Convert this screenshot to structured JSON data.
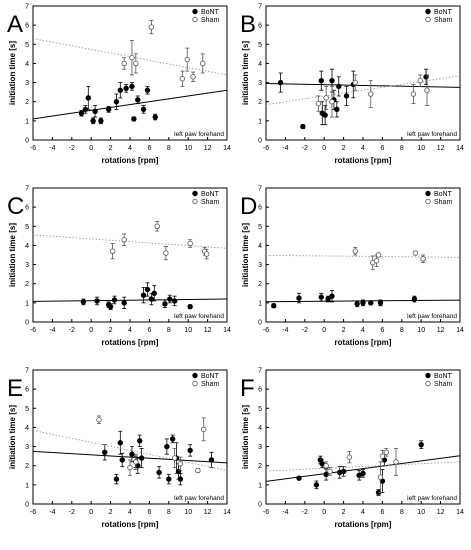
{
  "figure": {
    "common": {
      "xlabel": "rotations [rpm]",
      "ylabel": "initiation time [s]",
      "xlim": [
        -6,
        14
      ],
      "ylim": [
        0,
        7
      ],
      "xticks": [
        "-6",
        "-4",
        "-2",
        "0",
        "2",
        "4",
        "6",
        "8",
        "10",
        "12",
        "14"
      ],
      "yticks": [
        "0",
        "1",
        "2",
        "3",
        "4",
        "5",
        "6",
        "7"
      ],
      "annotation": "left paw forehand"
    },
    "colors": {
      "bont": "#000000",
      "sham": "#ffffff",
      "sham_stroke": "#555555",
      "axis": "#000000",
      "sham_line": "#9a9a9a"
    }
  },
  "chart_data": [
    {
      "type": "scatter",
      "panel_letter": "A",
      "legend": [
        "BoNT",
        "Sham"
      ],
      "legend_position": "top-right",
      "series": [
        {
          "name": "BoNT",
          "marker": "filled-circle",
          "points": [
            [
              -1.0,
              1.4,
              0.15
            ],
            [
              -0.6,
              1.6,
              0.2
            ],
            [
              -0.3,
              2.2,
              0.6
            ],
            [
              0.2,
              1.0,
              0.15
            ],
            [
              0.4,
              1.5,
              0.3
            ],
            [
              1.0,
              1.0,
              0.15
            ],
            [
              1.8,
              1.6,
              0.15
            ],
            [
              2.6,
              2.0,
              0.4
            ],
            [
              3.0,
              2.6,
              0.4
            ],
            [
              3.6,
              2.7,
              0.2
            ],
            [
              4.2,
              2.8,
              0.2
            ],
            [
              4.4,
              1.1,
              0.1
            ],
            [
              4.8,
              2.1,
              0.2
            ],
            [
              5.4,
              1.6,
              0.2
            ],
            [
              5.8,
              2.6,
              0.2
            ],
            [
              6.6,
              1.2,
              0.15
            ]
          ],
          "trend": {
            "style": "solid",
            "y_at_xmin": 1.1,
            "y_at_xmax": 2.6
          }
        },
        {
          "name": "Sham",
          "marker": "open-circle",
          "points": [
            [
              3.4,
              4.0,
              0.3
            ],
            [
              4.2,
              4.3,
              0.9
            ],
            [
              4.6,
              4.0,
              0.5
            ],
            [
              6.2,
              5.9,
              0.35
            ],
            [
              9.4,
              3.2,
              0.4
            ],
            [
              9.9,
              4.2,
              0.6
            ],
            [
              10.5,
              3.3,
              0.25
            ],
            [
              11.5,
              4.0,
              0.5
            ]
          ],
          "trend": {
            "style": "dotted",
            "y_at_xmin": 5.3,
            "y_at_xmax": 3.4
          }
        }
      ]
    },
    {
      "type": "scatter",
      "panel_letter": "B",
      "legend": [
        "BoNT",
        "Sham"
      ],
      "legend_position": "top-right",
      "series": [
        {
          "name": "BoNT",
          "marker": "filled-circle",
          "points": [
            [
              -4.5,
              3.0,
              0.5
            ],
            [
              -2.2,
              0.7,
              0.1
            ],
            [
              -0.3,
              3.1,
              0.5
            ],
            [
              -0.2,
              1.4,
              0.6
            ],
            [
              0.1,
              1.3,
              0.5
            ],
            [
              0.8,
              3.1,
              0.6
            ],
            [
              1.0,
              2.1,
              0.5
            ],
            [
              1.3,
              1.6,
              0.4
            ],
            [
              1.5,
              2.8,
              0.5
            ],
            [
              2.3,
              2.3,
              0.5
            ],
            [
              3.0,
              2.9,
              0.7
            ],
            [
              10.5,
              3.3,
              0.4
            ]
          ],
          "trend": {
            "style": "solid",
            "y_at_xmin": 2.95,
            "y_at_xmax": 2.75
          }
        },
        {
          "name": "Sham",
          "marker": "open-circle",
          "points": [
            [
              -0.6,
              1.9,
              0.4
            ],
            [
              0.2,
              2.2,
              0.6
            ],
            [
              0.8,
              2.0,
              0.8
            ],
            [
              3.2,
              3.0,
              0.4
            ],
            [
              4.8,
              2.4,
              0.7
            ],
            [
              9.2,
              2.4,
              0.5
            ],
            [
              9.9,
              3.1,
              0.3
            ],
            [
              10.6,
              2.6,
              0.8
            ]
          ],
          "trend": {
            "style": "dotted",
            "y_at_xmin": 1.85,
            "y_at_xmax": 3.35
          }
        }
      ]
    },
    {
      "type": "scatter",
      "panel_letter": "C",
      "legend": [
        "BoNT",
        "Sham"
      ],
      "legend_position": "top-right",
      "series": [
        {
          "name": "BoNT",
          "marker": "filled-circle",
          "points": [
            [
              -0.8,
              1.05,
              0.15
            ],
            [
              0.6,
              1.1,
              0.2
            ],
            [
              1.8,
              0.9,
              0.15
            ],
            [
              2.0,
              0.8,
              0.15
            ],
            [
              2.4,
              1.15,
              0.2
            ],
            [
              3.4,
              1.0,
              0.3
            ],
            [
              5.4,
              1.4,
              0.4
            ],
            [
              5.8,
              1.7,
              0.35
            ],
            [
              6.2,
              1.2,
              0.3
            ],
            [
              6.5,
              1.5,
              0.4
            ],
            [
              7.6,
              0.95,
              0.2
            ],
            [
              8.1,
              1.2,
              0.2
            ],
            [
              8.6,
              1.1,
              0.25
            ],
            [
              10.2,
              0.8,
              0.1
            ]
          ],
          "trend": {
            "style": "solid",
            "y_at_xmin": 1.08,
            "y_at_xmax": 1.2
          }
        },
        {
          "name": "Sham",
          "marker": "open-circle",
          "points": [
            [
              2.2,
              3.7,
              0.4
            ],
            [
              3.4,
              4.3,
              0.3
            ],
            [
              6.8,
              5.0,
              0.25
            ],
            [
              7.7,
              3.6,
              0.35
            ],
            [
              10.2,
              4.1,
              0.2
            ],
            [
              11.7,
              3.7,
              0.2
            ],
            [
              11.9,
              3.55,
              0.25
            ]
          ],
          "trend": {
            "style": "dotted",
            "y_at_xmin": 4.55,
            "y_at_xmax": 3.85
          }
        }
      ]
    },
    {
      "type": "scatter",
      "panel_letter": "D",
      "legend": [
        "BoNT",
        "Sham"
      ],
      "legend_position": "top-right",
      "series": [
        {
          "name": "BoNT",
          "marker": "filled-circle",
          "points": [
            [
              -5.2,
              0.85,
              0.1
            ],
            [
              -2.6,
              1.25,
              0.25
            ],
            [
              -0.3,
              1.3,
              0.2
            ],
            [
              0.4,
              1.2,
              0.15
            ],
            [
              0.8,
              1.35,
              0.3
            ],
            [
              3.4,
              0.95,
              0.15
            ],
            [
              4.0,
              1.0,
              0.15
            ],
            [
              4.8,
              1.0,
              0.1
            ],
            [
              5.8,
              1.0,
              0.15
            ],
            [
              9.3,
              1.2,
              0.15
            ]
          ],
          "trend": {
            "style": "solid",
            "y_at_xmin": 1.06,
            "y_at_xmax": 1.14
          }
        },
        {
          "name": "Sham",
          "marker": "open-circle",
          "points": [
            [
              3.2,
              3.7,
              0.2
            ],
            [
              5.0,
              3.1,
              0.35
            ],
            [
              5.4,
              3.2,
              0.3
            ],
            [
              5.6,
              3.5,
              0.1
            ],
            [
              9.4,
              3.6,
              0.1
            ],
            [
              10.2,
              3.3,
              0.2
            ]
          ],
          "trend": {
            "style": "dotted",
            "y_at_xmin": 3.48,
            "y_at_xmax": 3.38
          }
        }
      ]
    },
    {
      "type": "scatter",
      "panel_letter": "E",
      "legend": [
        "BoNT",
        "Sham"
      ],
      "legend_position": "top-right",
      "series": [
        {
          "name": "BoNT",
          "marker": "filled-circle",
          "points": [
            [
              1.4,
              2.7,
              0.4
            ],
            [
              2.6,
              1.3,
              0.25
            ],
            [
              3.0,
              3.2,
              0.6
            ],
            [
              3.2,
              2.3,
              0.35
            ],
            [
              4.2,
              2.6,
              0.4
            ],
            [
              4.6,
              2.2,
              0.3
            ],
            [
              4.8,
              2.0,
              0.4
            ],
            [
              5.0,
              3.3,
              0.3
            ],
            [
              5.2,
              2.4,
              0.5
            ],
            [
              7.0,
              1.65,
              0.3
            ],
            [
              7.8,
              3.0,
              0.4
            ],
            [
              8.0,
              1.3,
              0.25
            ],
            [
              8.4,
              3.4,
              0.2
            ],
            [
              8.8,
              2.4,
              0.8
            ],
            [
              9.0,
              1.7,
              0.4
            ],
            [
              9.2,
              1.3,
              0.3
            ],
            [
              10.2,
              2.8,
              0.3
            ],
            [
              12.4,
              2.3,
              0.4
            ]
          ],
          "trend": {
            "style": "solid",
            "y_at_xmin": 2.75,
            "y_at_xmax": 2.15
          }
        },
        {
          "name": "Sham",
          "marker": "open-circle",
          "points": [
            [
              0.8,
              4.4,
              0.2
            ],
            [
              4.0,
              1.9,
              0.4
            ],
            [
              4.6,
              2.2,
              0.4
            ],
            [
              8.6,
              2.4,
              0.5
            ],
            [
              9.2,
              2.1,
              0.35
            ],
            [
              11.0,
              1.75,
              0.1
            ],
            [
              11.6,
              3.9,
              0.6
            ]
          ],
          "trend": {
            "style": "dotted",
            "y_at_xmin": 3.85,
            "y_at_xmax": 1.75
          }
        }
      ]
    },
    {
      "type": "scatter",
      "panel_letter": "F",
      "legend": [
        "BoNT",
        "Sham"
      ],
      "legend_position": "top-right",
      "series": [
        {
          "name": "BoNT",
          "marker": "filled-circle",
          "points": [
            [
              -2.6,
              1.35,
              0.05
            ],
            [
              -0.8,
              1.0,
              0.2
            ],
            [
              -0.4,
              2.3,
              0.2
            ],
            [
              -0.2,
              2.1,
              0.2
            ],
            [
              0.2,
              1.55,
              0.3
            ],
            [
              1.6,
              1.65,
              0.3
            ],
            [
              2.0,
              1.7,
              0.25
            ],
            [
              3.6,
              1.5,
              0.25
            ],
            [
              4.0,
              1.6,
              0.2
            ],
            [
              5.6,
              0.6,
              0.15
            ],
            [
              6.0,
              1.2,
              0.6
            ],
            [
              6.2,
              2.3,
              0.3
            ],
            [
              10.0,
              3.1,
              0.2
            ]
          ],
          "trend": {
            "style": "solid",
            "y_at_xmin": 1.18,
            "y_at_xmax": 2.52
          }
        },
        {
          "name": "Sham",
          "marker": "open-circle",
          "points": [
            [
              0.2,
              2.0,
              0.2
            ],
            [
              0.6,
              1.7,
              0.2
            ],
            [
              2.6,
              2.45,
              0.3
            ],
            [
              5.8,
              1.4,
              0.8
            ],
            [
              6.0,
              2.5,
              0.3
            ],
            [
              6.4,
              2.7,
              0.2
            ],
            [
              7.4,
              2.2,
              0.7
            ]
          ],
          "trend": {
            "style": "dotted",
            "y_at_xmin": 1.72,
            "y_at_xmax": 2.2
          }
        }
      ]
    }
  ]
}
